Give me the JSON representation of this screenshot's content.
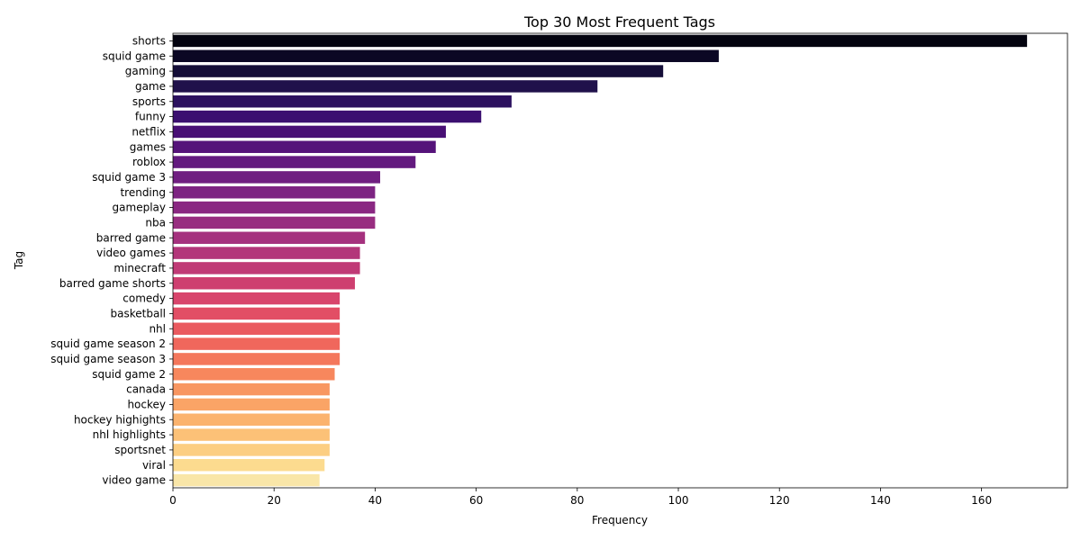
{
  "chart_data": {
    "type": "bar",
    "orientation": "horizontal",
    "title": "Top 30 Most Frequent Tags",
    "xlabel": "Frequency",
    "ylabel": "Tag",
    "xlim": [
      0,
      177
    ],
    "xticks": [
      0,
      20,
      40,
      60,
      80,
      100,
      120,
      140,
      160
    ],
    "grid": false,
    "colormap": "magma",
    "categories": [
      "shorts",
      "squid game",
      "gaming",
      "game",
      "sports",
      "funny",
      "netflix",
      "games",
      "roblox",
      "squid game 3",
      "trending",
      "gameplay",
      "nba",
      "barred game",
      "video games",
      "minecraft",
      "barred game shorts",
      "comedy",
      "basketball",
      "nhl",
      "squid game season 2",
      "squid game season 3",
      "squid game 2",
      "canada",
      "hockey",
      "hockey highights",
      "nhl highlights",
      "sportsnet",
      "viral",
      "video game"
    ],
    "values": [
      169,
      108,
      97,
      84,
      67,
      61,
      54,
      52,
      48,
      41,
      40,
      40,
      40,
      38,
      37,
      37,
      36,
      33,
      33,
      33,
      33,
      33,
      32,
      31,
      31,
      31,
      31,
      31,
      30,
      29
    ],
    "colors": [
      "#03030f",
      "#0b0724",
      "#150e38",
      "#20114b",
      "#2c115f",
      "#3b0f70",
      "#480f75",
      "#55137a",
      "#631a7f",
      "#701f81",
      "#7d2482",
      "#8a2882",
      "#982d80",
      "#a5317e",
      "#b3367a",
      "#c03a76",
      "#ce3f70",
      "#d8456c",
      "#e24e65",
      "#ea5a5f",
      "#f0675c",
      "#f4775c",
      "#f7875d",
      "#f89661",
      "#faa466",
      "#fbb36e",
      "#fcc177",
      "#fcce82",
      "#fcdb8f",
      "#f9e6a8"
    ]
  }
}
